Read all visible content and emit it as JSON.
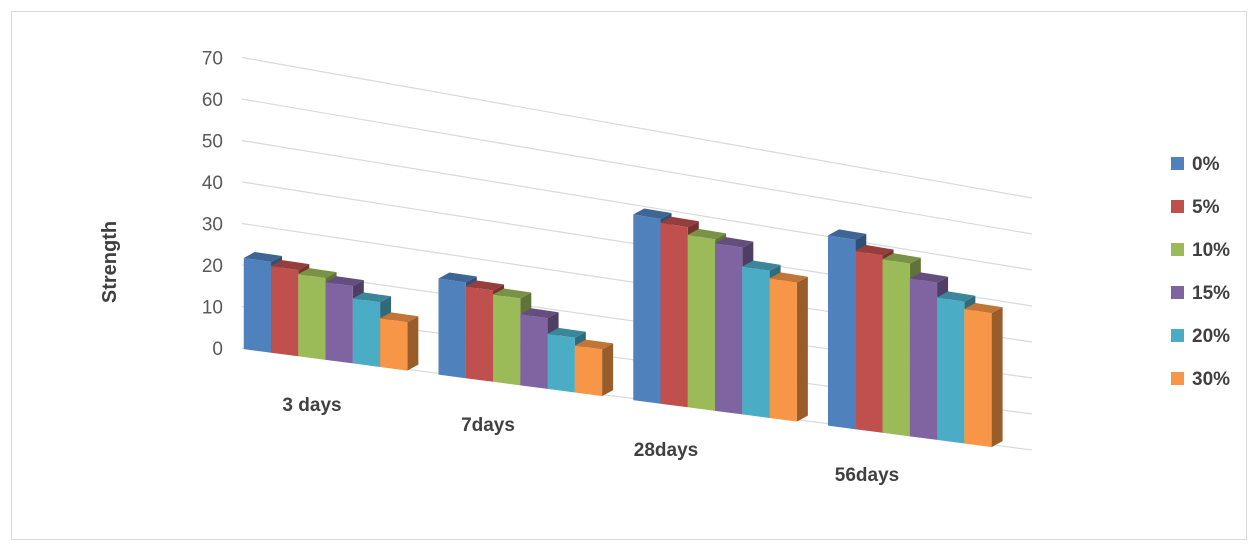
{
  "chart_data": {
    "type": "bar",
    "ylabel": "Strength",
    "xlabel": "",
    "ylim": [
      0,
      70
    ],
    "yticks": [
      "0",
      "10",
      "20",
      "30",
      "40",
      "50",
      "60",
      "70"
    ],
    "grid": true,
    "legend_position": "right",
    "categories": [
      "3 days",
      "7days",
      "28days",
      "56days"
    ],
    "series": [
      {
        "name": "0%",
        "color": "#4f81bd",
        "values": [
          22,
          24,
          48,
          51
        ]
      },
      {
        "name": "5%",
        "color": "#c0504d",
        "values": [
          21,
          23,
          47,
          48
        ]
      },
      {
        "name": "10%",
        "color": "#9bbb59",
        "values": [
          20,
          22,
          45,
          47
        ]
      },
      {
        "name": "15%",
        "color": "#8064a2",
        "values": [
          19,
          18,
          44,
          43
        ]
      },
      {
        "name": "20%",
        "color": "#4bacc6",
        "values": [
          16,
          14,
          39,
          39
        ]
      },
      {
        "name": "30%",
        "color": "#f79646",
        "values": [
          12,
          12,
          37,
          37
        ]
      }
    ]
  }
}
